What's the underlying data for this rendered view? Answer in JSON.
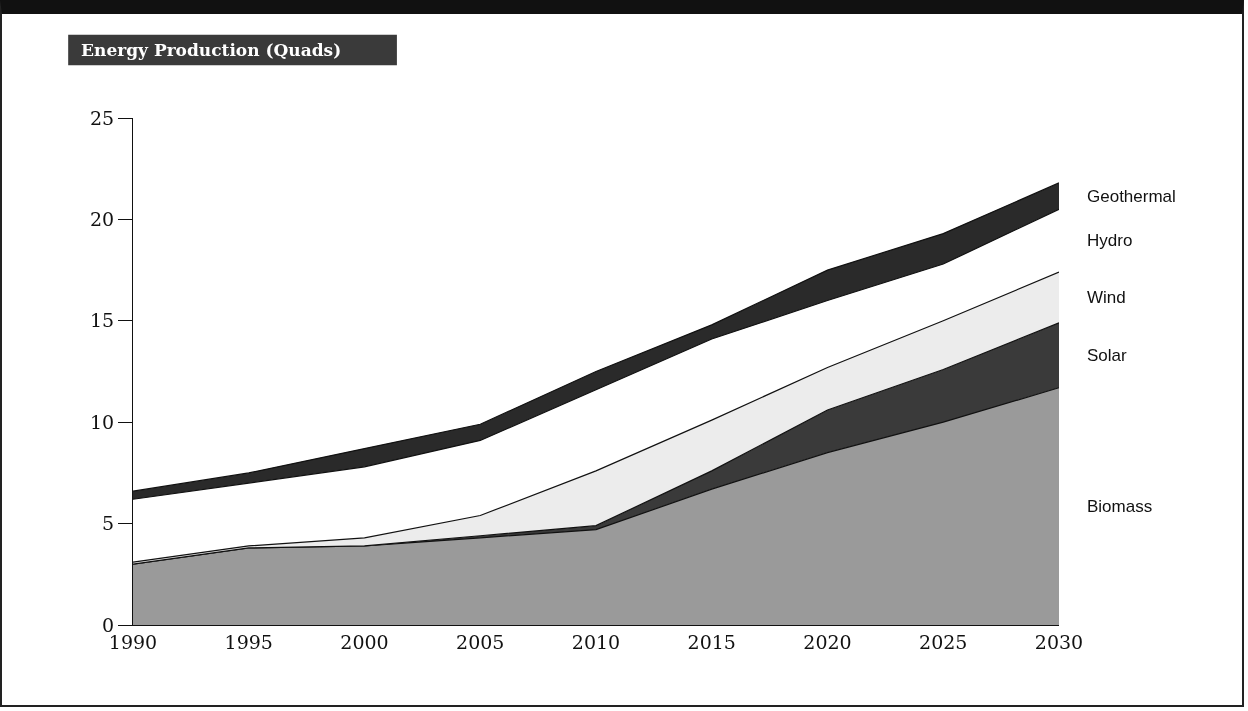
{
  "chart_data": {
    "type": "area",
    "title": "Energy Production (Quads)",
    "stacked": true,
    "x": [
      1990,
      1995,
      2000,
      2005,
      2010,
      2015,
      2020,
      2025,
      2030
    ],
    "xlim": [
      1990,
      2030
    ],
    "xticks": [
      1990,
      1995,
      2000,
      2005,
      2010,
      2015,
      2020,
      2025,
      2030
    ],
    "ylim": [
      0,
      25
    ],
    "yticks": [
      0,
      5,
      10,
      15,
      20,
      25
    ],
    "grid": false,
    "legend": false,
    "series": [
      {
        "name": "Biomass",
        "color": "#9a9a9a",
        "values": [
          3.0,
          3.8,
          3.9,
          4.3,
          4.7,
          6.7,
          8.5,
          10.0,
          11.7
        ]
      },
      {
        "name": "Solar",
        "color": "#3a3a3a",
        "values": [
          0,
          0,
          0,
          0.1,
          0.2,
          0.9,
          2.1,
          2.6,
          3.2
        ]
      },
      {
        "name": "Wind",
        "color": "#ececec",
        "values": [
          0.1,
          0.1,
          0.4,
          1.0,
          2.7,
          2.5,
          2.1,
          2.4,
          2.5
        ]
      },
      {
        "name": "Hydro",
        "color": "#ffffff",
        "values": [
          3.1,
          3.1,
          3.5,
          3.7,
          4.0,
          4.0,
          3.3,
          2.8,
          3.1
        ]
      },
      {
        "name": "Geothermal",
        "color": "#2a2a2a",
        "values": [
          0.4,
          0.5,
          0.9,
          0.8,
          0.9,
          0.7,
          1.5,
          1.5,
          1.3
        ]
      }
    ]
  }
}
